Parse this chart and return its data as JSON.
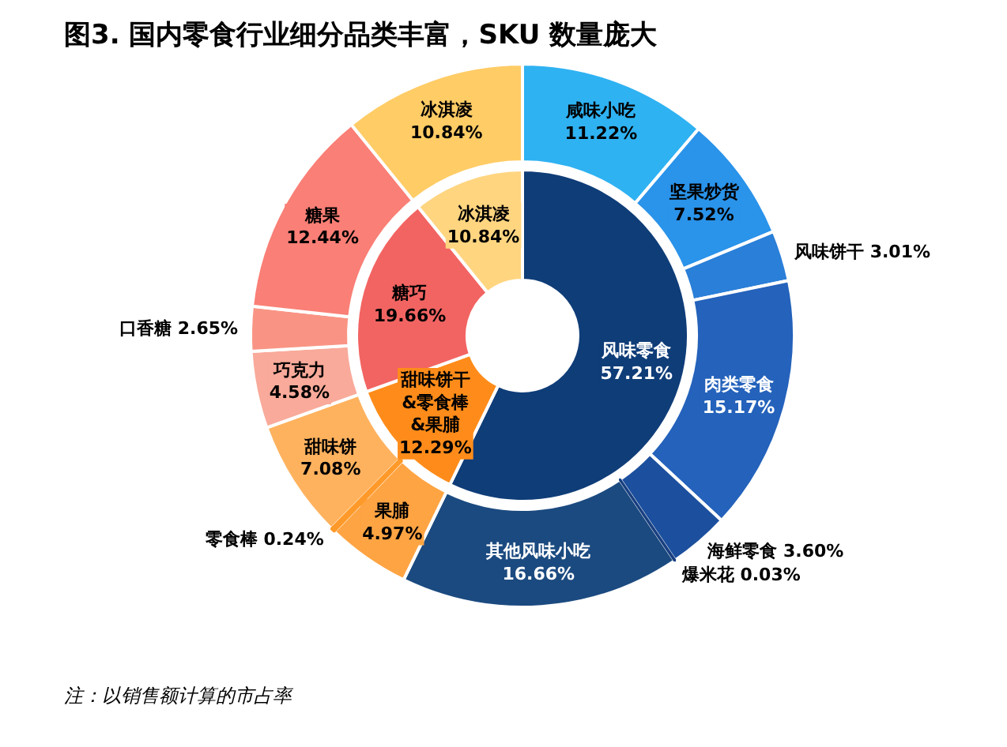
{
  "chart_data": [
    {
      "type": "donut",
      "title": "图3. 国内零食行业细分品类丰富，SKU 数量庞大",
      "annotations": [
        "注：以销售额计算的市占率"
      ],
      "categories": [
        "风味零食",
        "甜味饼干\n&零食棒\n&果脯",
        "糖巧",
        "冰淇凌"
      ],
      "values": [
        57.21,
        12.29,
        19.66,
        10.84
      ],
      "value_labels": [
        "57.21%",
        "12.29%",
        "19.66%",
        "10.84%"
      ],
      "colors": [
        "#0f3d78",
        "#ff8c1a",
        "#f26462",
        "#ffd580"
      ]
    },
    {
      "type": "donut",
      "categories": [
        "咸味小吃",
        "坚果炒货",
        "风味饼干",
        "肉类零食",
        "海鲜零食",
        "爆米花",
        "其他风味小吃",
        "果脯",
        "零食棒",
        "甜味饼",
        "巧克力",
        "口香糖",
        "糖果",
        "冰淇凌"
      ],
      "values": [
        11.22,
        7.52,
        3.01,
        15.17,
        3.6,
        0.03,
        16.66,
        4.97,
        0.24,
        7.08,
        4.58,
        2.65,
        12.44,
        10.84
      ],
      "value_labels": [
        "11.22%",
        "7.52%",
        "3.01%",
        "15.17%",
        "3.60%",
        "0.03%",
        "16.66%",
        "4.97%",
        "0.24%",
        "7.08%",
        "4.58%",
        "2.65%",
        "12.44%",
        "10.84%"
      ],
      "colors": [
        "#2fb2f2",
        "#2a93ea",
        "#2a7fd8",
        "#2462bb",
        "#1c509e",
        "#183f80",
        "#1b4a80",
        "#ffa443",
        "#ff9a2a",
        "#ffb25e",
        "#f9aa9a",
        "#f99484",
        "#fa7f76",
        "#ffcc66"
      ]
    }
  ]
}
